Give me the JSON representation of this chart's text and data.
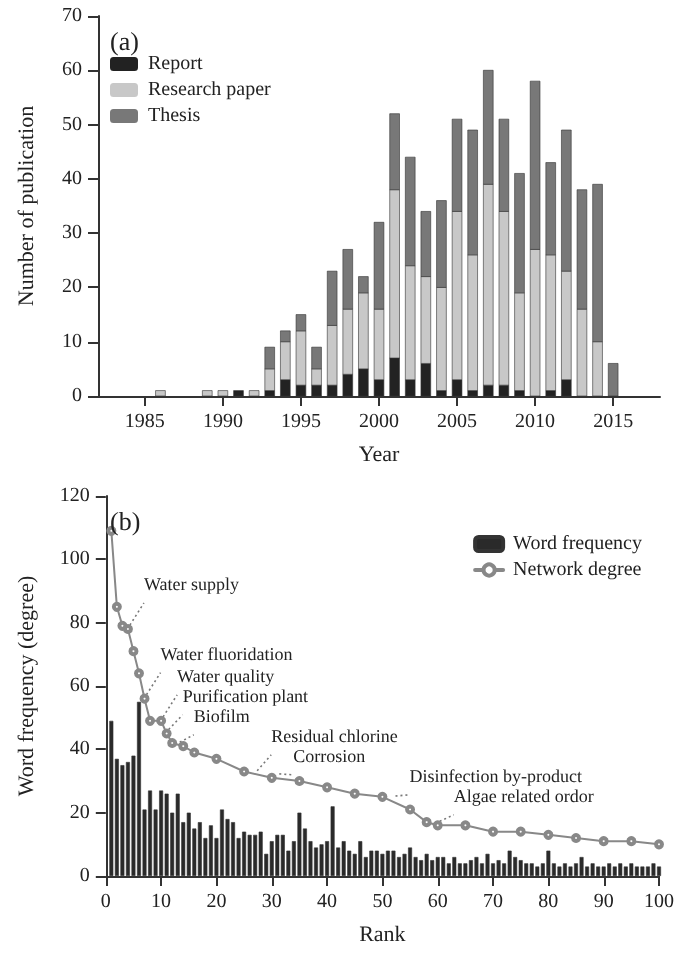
{
  "chart_data": [
    {
      "type": "bar",
      "title": "(a)",
      "xlabel": "Year",
      "ylabel": "Number of publication",
      "stacked": true,
      "legend": "top left",
      "grid": false,
      "x": [
        1986,
        1989,
        1990,
        1991,
        1992,
        1993,
        1994,
        1995,
        1996,
        1997,
        1998,
        1999,
        2000,
        2001,
        2002,
        2003,
        2004,
        2005,
        2006,
        2007,
        2008,
        2009,
        2010,
        2011,
        2012,
        2013,
        2014,
        2015
      ],
      "xlim": [
        1982,
        2018
      ],
      "xticks": [
        1985,
        1990,
        1995,
        2000,
        2005,
        2010,
        2015
      ],
      "ylim": [
        0,
        70
      ],
      "yticks": [
        0,
        10,
        20,
        30,
        40,
        50,
        60,
        70
      ],
      "series": [
        {
          "name": "Report",
          "color": "#222222",
          "values": [
            0,
            0,
            0,
            1,
            0,
            1,
            3,
            2,
            2,
            2,
            4,
            5,
            3,
            7,
            3,
            6,
            1,
            3,
            1,
            2,
            2,
            1,
            0,
            1,
            3,
            0,
            0,
            0
          ]
        },
        {
          "name": "Research paper",
          "color": "#c8c8c8",
          "values": [
            1,
            1,
            1,
            0,
            1,
            4,
            7,
            10,
            3,
            11,
            12,
            14,
            13,
            31,
            21,
            16,
            19,
            31,
            25,
            37,
            32,
            18,
            27,
            25,
            20,
            16,
            10,
            0
          ]
        },
        {
          "name": "Thesis",
          "color": "#787878",
          "values": [
            0,
            0,
            0,
            0,
            0,
            4,
            2,
            3,
            4,
            10,
            11,
            3,
            16,
            14,
            20,
            12,
            16,
            17,
            23,
            21,
            17,
            22,
            31,
            17,
            26,
            22,
            29,
            6
          ]
        }
      ]
    },
    {
      "type": "bar",
      "title": "(b)",
      "xlabel": "Rank",
      "ylabel": "Word frequency (degree)",
      "legend": "top right",
      "grid": false,
      "marker": "circle",
      "x": [
        1,
        2,
        3,
        4,
        5,
        6,
        7,
        8,
        9,
        10,
        11,
        12,
        13,
        14,
        15,
        16,
        17,
        18,
        19,
        20,
        21,
        22,
        23,
        24,
        25,
        26,
        27,
        28,
        29,
        30,
        31,
        32,
        33,
        34,
        35,
        36,
        37,
        38,
        39,
        40,
        41,
        42,
        43,
        44,
        45,
        46,
        47,
        48,
        49,
        50,
        51,
        52,
        53,
        54,
        55,
        56,
        57,
        58,
        59,
        60,
        61,
        62,
        63,
        64,
        65,
        66,
        67,
        68,
        69,
        70,
        71,
        72,
        73,
        74,
        75,
        76,
        77,
        78,
        79,
        80,
        81,
        82,
        83,
        84,
        85,
        86,
        87,
        88,
        89,
        90,
        91,
        92,
        93,
        94,
        95,
        96,
        97,
        98,
        99,
        100
      ],
      "xlim": [
        0,
        100
      ],
      "xticks": [
        0,
        10,
        20,
        30,
        40,
        50,
        60,
        70,
        80,
        90,
        100
      ],
      "ylim": [
        0,
        120
      ],
      "yticks": [
        0,
        20,
        40,
        60,
        80,
        100,
        120
      ],
      "series": [
        {
          "name": "Word frequency",
          "color": "#2a2a2a",
          "values": [
            49,
            37,
            35,
            36,
            38,
            55,
            21,
            27,
            21,
            27,
            26,
            20,
            26,
            17,
            20,
            15,
            17,
            12,
            16,
            12,
            21,
            18,
            17,
            12,
            14,
            13,
            13,
            14,
            7,
            11,
            13,
            13,
            8,
            11,
            20,
            15,
            11,
            9,
            10,
            11,
            22,
            9,
            11,
            8,
            7,
            11,
            6,
            8,
            8,
            7,
            8,
            8,
            6,
            7,
            9,
            6,
            5,
            7,
            5,
            6,
            6,
            4,
            6,
            4,
            4,
            5,
            6,
            4,
            7,
            4,
            5,
            4,
            8,
            6,
            5,
            4,
            4,
            3,
            4,
            8,
            4,
            3,
            4,
            3,
            4,
            6,
            3,
            4,
            3,
            3,
            4,
            3,
            4,
            3,
            4,
            3,
            3,
            3,
            4,
            3
          ]
        },
        {
          "name": "Network degree",
          "type": "line",
          "color": "#888888",
          "x": [
            1,
            2,
            3,
            4,
            5,
            6,
            7,
            8,
            10,
            11,
            12,
            14,
            16,
            20,
            25,
            30,
            35,
            40,
            45,
            50,
            55,
            58,
            60,
            65,
            70,
            75,
            80,
            85,
            90,
            95,
            100
          ],
          "values": [
            109,
            85,
            79,
            78,
            71,
            64,
            56,
            49,
            49,
            45,
            42,
            41,
            39,
            37,
            33,
            31,
            30,
            28,
            26,
            25,
            21,
            17,
            16,
            16,
            14,
            14,
            13,
            12,
            11,
            11,
            10
          ]
        }
      ],
      "annotations": [
        {
          "text": "Water supply",
          "x": 4,
          "y": 78
        },
        {
          "text": "Water fluoridation",
          "x": 7,
          "y": 56
        },
        {
          "text": "Water quality",
          "x": 10,
          "y": 49
        },
        {
          "text": "Purification plant",
          "x": 11,
          "y": 45
        },
        {
          "text": "Biofilm",
          "x": 13,
          "y": 41
        },
        {
          "text": "Residual chlorine",
          "x": 27,
          "y": 32
        },
        {
          "text": "Corrosion",
          "x": 31,
          "y": 31
        },
        {
          "text": "Disinfection by-product",
          "x": 52,
          "y": 24
        },
        {
          "text": "Algae related ordor",
          "x": 60,
          "y": 16
        }
      ]
    }
  ]
}
